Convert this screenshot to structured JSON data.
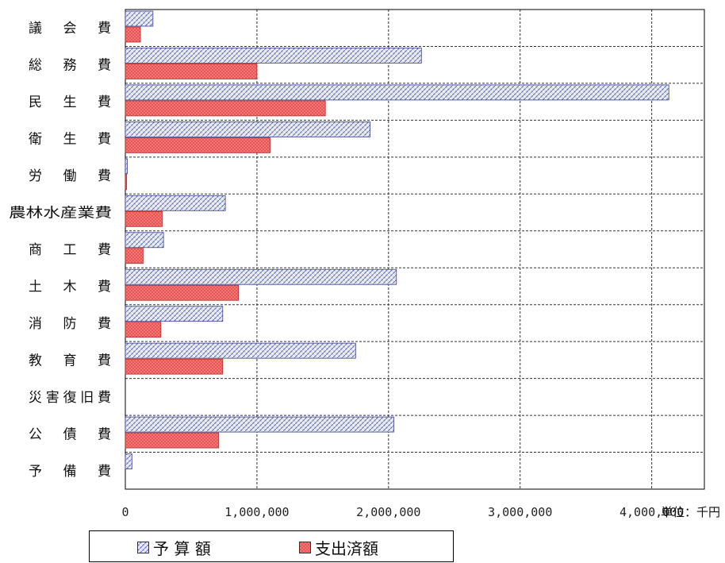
{
  "chart_data": {
    "type": "bar",
    "orientation": "horizontal",
    "categories": [
      "議 会 費",
      "総 務 費",
      "民 生 費",
      "衛 生 費",
      "労 働 費",
      "農林水産業費",
      "商 工 費",
      "土 木 費",
      "消 防 費",
      "教 育 費",
      "災害復旧費",
      "公 債 費",
      "予 備 費"
    ],
    "series": [
      {
        "name": "予 算 額",
        "values": [
          210000,
          2250000,
          4130000,
          1860000,
          15000,
          760000,
          290000,
          2060000,
          740000,
          1750000,
          0,
          2040000,
          50000
        ],
        "color": "#c8cdf0",
        "pattern": "diagonal-hatch-blue"
      },
      {
        "name": "支出済額",
        "values": [
          115000,
          1000000,
          1520000,
          1100000,
          10000,
          280000,
          135000,
          860000,
          270000,
          740000,
          0,
          710000,
          0
        ],
        "color": "#f47c7c",
        "pattern": "crosshatch-red"
      }
    ],
    "x_ticks": [
      "0",
      "1,000,000",
      "2,000,000",
      "3,000,000",
      "4,000,000"
    ],
    "xlim": [
      0,
      4400000
    ],
    "grid": "dashed",
    "legend": "bottom"
  },
  "unit_label": "単位：千円"
}
